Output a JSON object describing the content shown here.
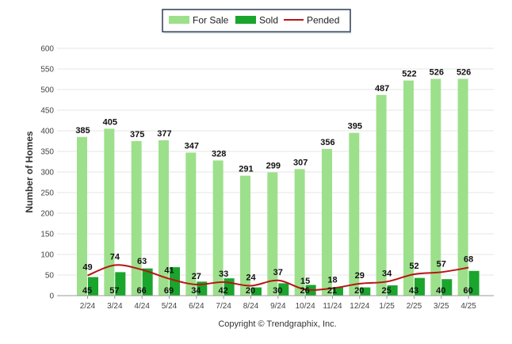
{
  "chart_data": {
    "type": "bar",
    "ylabel": "Number of Homes",
    "xlabel": "",
    "ylim": [
      0,
      600
    ],
    "yticks": [
      0,
      50,
      100,
      150,
      200,
      250,
      300,
      350,
      400,
      450,
      500,
      550,
      600
    ],
    "grid": true,
    "legend_position": "top-center",
    "categories": [
      "2/24",
      "3/24",
      "4/24",
      "5/24",
      "6/24",
      "7/24",
      "8/24",
      "9/24",
      "10/24",
      "11/24",
      "12/24",
      "1/25",
      "2/25",
      "3/25",
      "4/25"
    ],
    "series": [
      {
        "name": "For Sale",
        "type": "bar",
        "color": "#9de08b",
        "values": [
          385,
          405,
          375,
          377,
          347,
          328,
          291,
          299,
          307,
          356,
          395,
          487,
          522,
          526,
          526
        ]
      },
      {
        "name": "Sold",
        "type": "bar",
        "color": "#1aa52d",
        "values": [
          45,
          57,
          66,
          69,
          34,
          42,
          20,
          30,
          26,
          21,
          20,
          25,
          43,
          40,
          60
        ]
      },
      {
        "name": "Pended",
        "type": "line",
        "color": "#b81414",
        "values": [
          49,
          74,
          63,
          41,
          27,
          33,
          24,
          37,
          15,
          18,
          29,
          34,
          52,
          57,
          68
        ]
      }
    ]
  },
  "footer": {
    "copyright": "Copyright © Trendgraphix, Inc."
  }
}
